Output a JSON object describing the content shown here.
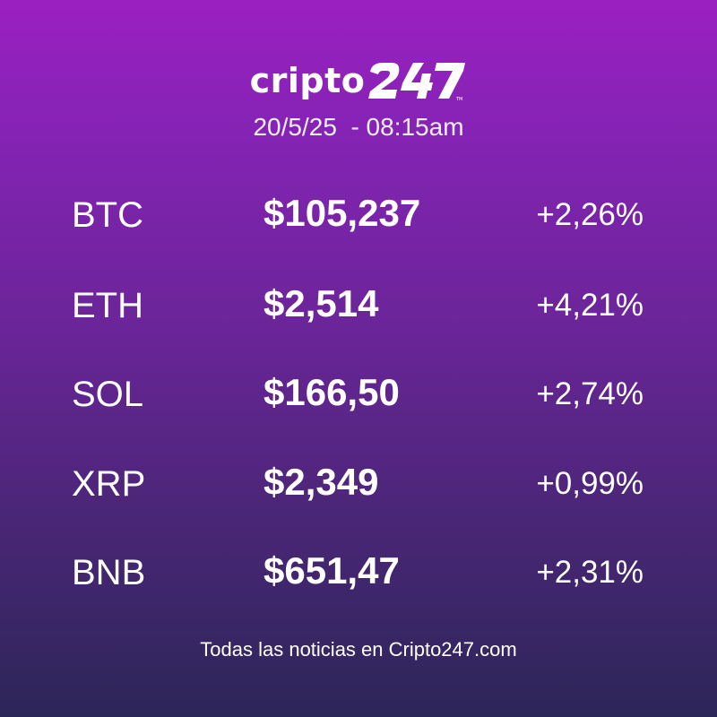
{
  "brand": {
    "name_text": "cripto",
    "name_number": "247"
  },
  "datetime": "20/5/25  - 08:15am",
  "rows": [
    {
      "symbol": "BTC",
      "price": "$105,237",
      "change": "+2,26%"
    },
    {
      "symbol": "ETH",
      "price": "$2,514",
      "change": "+4,21%"
    },
    {
      "symbol": "SOL",
      "price": "$166,50",
      "change": "+2,74%"
    },
    {
      "symbol": "XRP",
      "price": "$2,349",
      "change": "+0,99%"
    },
    {
      "symbol": "BNB",
      "price": "$651,47",
      "change": "+2,31%"
    }
  ],
  "footer": "Todas las noticias en Cripto247.com",
  "colors": {
    "gradient_top": "#9b20c0",
    "gradient_bottom": "#2c2658",
    "text": "#ffffff"
  }
}
